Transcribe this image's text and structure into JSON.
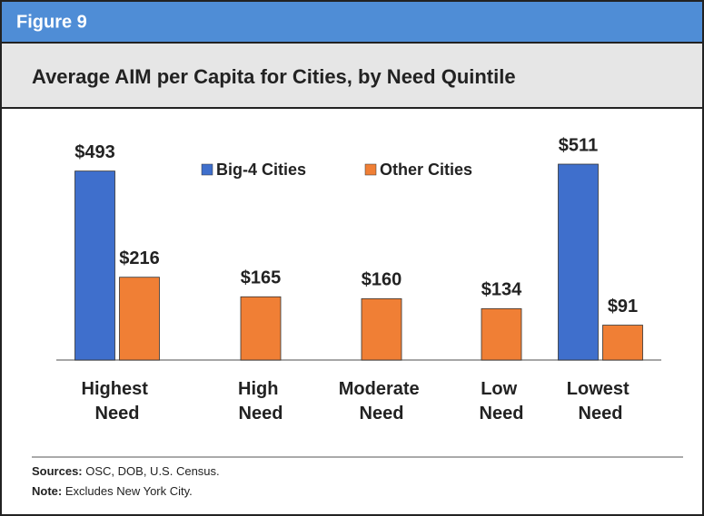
{
  "figure_label": "Figure 9",
  "chart_data": {
    "type": "bar",
    "title": "Average AIM per Capita for Cities, by Need Quintile",
    "categories": [
      "Highest Need",
      "High Need",
      "Moderate Need",
      "Low Need",
      "Lowest Need"
    ],
    "series": [
      {
        "name": "Big-4 Cities",
        "color": "#3f6fcc",
        "values": [
          493,
          null,
          null,
          null,
          511
        ],
        "value_labels": [
          "$493",
          null,
          null,
          null,
          "$511"
        ]
      },
      {
        "name": "Other Cities",
        "color": "#f07f35",
        "values": [
          216,
          165,
          160,
          134,
          91
        ],
        "value_labels": [
          "$216",
          "$165",
          "$160",
          "$134",
          "$91"
        ]
      }
    ],
    "ylim": [
      0,
      600
    ]
  },
  "footer": {
    "sources_label": "Sources:",
    "sources": "OSC, DOB, U.S. Census.",
    "note_label": "Note:",
    "note": "Excludes New York City."
  }
}
